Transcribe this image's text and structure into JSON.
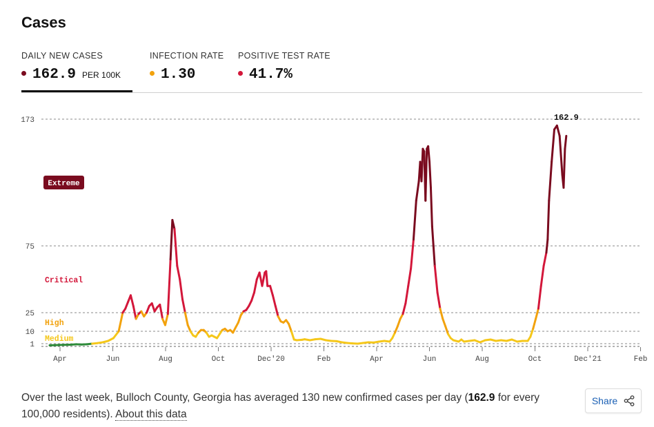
{
  "title": "Cases",
  "tabs": [
    {
      "label": "DAILY NEW CASES",
      "value": "162.9",
      "unit": "PER 100K",
      "dot_color": "#7a0b1f",
      "active": true
    },
    {
      "label": "INFECTION RATE",
      "value": "1.30",
      "unit": "",
      "dot_color": "#f2a20d",
      "active": false
    },
    {
      "label": "POSITIVE TEST RATE",
      "value": "41.7%",
      "unit": "",
      "dot_color": "#d3173a",
      "active": false
    }
  ],
  "footer": {
    "text_before": "Over the last week, Bulloch County, Georgia has averaged 130 new confirmed cases per day (",
    "bold_value": "162.9",
    "text_after": " for every 100,000 residents). ",
    "link_label": "About this data"
  },
  "share": {
    "label": "Share",
    "icon": "share-icon"
  },
  "chart_data": {
    "type": "line",
    "series_name": "Daily new cases per 100K",
    "x_ticks": [
      "Apr",
      "Jun",
      "Aug",
      "Oct",
      "Dec'20",
      "Feb",
      "Apr",
      "Jun",
      "Aug",
      "Oct",
      "Dec'21",
      "Feb"
    ],
    "y_ticks": [
      1,
      10,
      25,
      75,
      173
    ],
    "y_scale": "nonlinear (threshold-banded)",
    "latest_label": "162.9",
    "risk_bands": [
      {
        "label": "Medium",
        "from": 1,
        "to": 10,
        "color": "#f5c71a"
      },
      {
        "label": "High",
        "from": 10,
        "to": 25,
        "color": "#f2a20d"
      },
      {
        "label": "Critical",
        "from": 25,
        "to": 75,
        "color": "#d3173a"
      },
      {
        "label": "Extreme",
        "from": 75,
        "to": 173,
        "color": "#7a0b1f"
      }
    ],
    "low_color": "#2e8b3a",
    "points": [
      [
        0,
        0.2
      ],
      [
        0.2,
        0.3
      ],
      [
        0.5,
        0.4
      ],
      [
        0.8,
        0.5
      ],
      [
        1.0,
        0.7
      ],
      [
        1.2,
        0.6
      ],
      [
        1.4,
        0.7
      ],
      [
        1.6,
        1
      ],
      [
        1.8,
        1.4
      ],
      [
        2.0,
        2
      ],
      [
        2.2,
        3
      ],
      [
        2.4,
        5
      ],
      [
        2.6,
        10
      ],
      [
        2.75,
        25
      ],
      [
        2.85,
        28
      ],
      [
        2.95,
        33
      ],
      [
        3.05,
        38
      ],
      [
        3.15,
        30
      ],
      [
        3.25,
        20
      ],
      [
        3.35,
        24
      ],
      [
        3.45,
        26
      ],
      [
        3.55,
        22
      ],
      [
        3.65,
        25
      ],
      [
        3.75,
        30
      ],
      [
        3.85,
        32
      ],
      [
        3.95,
        26
      ],
      [
        4.05,
        29
      ],
      [
        4.15,
        31
      ],
      [
        4.25,
        20
      ],
      [
        4.35,
        15
      ],
      [
        4.45,
        24
      ],
      [
        4.55,
        65
      ],
      [
        4.62,
        95
      ],
      [
        4.7,
        88
      ],
      [
        4.8,
        60
      ],
      [
        4.9,
        50
      ],
      [
        5.0,
        35
      ],
      [
        5.1,
        25
      ],
      [
        5.2,
        15
      ],
      [
        5.3,
        10
      ],
      [
        5.4,
        7
      ],
      [
        5.5,
        6
      ],
      [
        5.6,
        9
      ],
      [
        5.7,
        11
      ],
      [
        5.8,
        11
      ],
      [
        5.9,
        9
      ],
      [
        6.0,
        6
      ],
      [
        6.1,
        7
      ],
      [
        6.2,
        6
      ],
      [
        6.3,
        5
      ],
      [
        6.4,
        8
      ],
      [
        6.5,
        11
      ],
      [
        6.6,
        12
      ],
      [
        6.7,
        10
      ],
      [
        6.8,
        11
      ],
      [
        6.9,
        9
      ],
      [
        7.0,
        13
      ],
      [
        7.1,
        17
      ],
      [
        7.2,
        23
      ],
      [
        7.3,
        26
      ],
      [
        7.4,
        27
      ],
      [
        7.5,
        30
      ],
      [
        7.6,
        34
      ],
      [
        7.7,
        40
      ],
      [
        7.8,
        50
      ],
      [
        7.9,
        55
      ],
      [
        8.0,
        45
      ],
      [
        8.1,
        55
      ],
      [
        8.15,
        56
      ],
      [
        8.2,
        45
      ],
      [
        8.3,
        45
      ],
      [
        8.4,
        38
      ],
      [
        8.5,
        30
      ],
      [
        8.6,
        22
      ],
      [
        8.7,
        18
      ],
      [
        8.8,
        17
      ],
      [
        8.9,
        19
      ],
      [
        9.0,
        16
      ],
      [
        9.1,
        10
      ],
      [
        9.2,
        4
      ],
      [
        9.3,
        3.5
      ],
      [
        9.5,
        3.8
      ],
      [
        9.6,
        4.2
      ],
      [
        9.8,
        3.5
      ],
      [
        10.0,
        4.2
      ],
      [
        10.2,
        4.5
      ],
      [
        10.4,
        3.5
      ],
      [
        10.6,
        3
      ],
      [
        10.8,
        2.8
      ],
      [
        11.0,
        2
      ],
      [
        11.2,
        1.5
      ],
      [
        11.4,
        1.2
      ],
      [
        11.6,
        1
      ],
      [
        11.8,
        1.5
      ],
      [
        12.0,
        2
      ],
      [
        12.2,
        1.8
      ],
      [
        12.4,
        2.5
      ],
      [
        12.6,
        3
      ],
      [
        12.8,
        2.5
      ],
      [
        12.9,
        5
      ],
      [
        13.0,
        9
      ],
      [
        13.1,
        14
      ],
      [
        13.2,
        20
      ],
      [
        13.3,
        24
      ],
      [
        13.4,
        32
      ],
      [
        13.5,
        45
      ],
      [
        13.6,
        58
      ],
      [
        13.7,
        80
      ],
      [
        13.8,
        110
      ],
      [
        13.9,
        125
      ],
      [
        13.95,
        140
      ],
      [
        14.0,
        125
      ],
      [
        14.05,
        150
      ],
      [
        14.1,
        148
      ],
      [
        14.15,
        110
      ],
      [
        14.2,
        150
      ],
      [
        14.25,
        152
      ],
      [
        14.3,
        140
      ],
      [
        14.35,
        120
      ],
      [
        14.4,
        90
      ],
      [
        14.5,
        60
      ],
      [
        14.6,
        40
      ],
      [
        14.7,
        28
      ],
      [
        14.8,
        20
      ],
      [
        14.9,
        14
      ],
      [
        15.0,
        8
      ],
      [
        15.1,
        5
      ],
      [
        15.2,
        3.5
      ],
      [
        15.4,
        2.5
      ],
      [
        15.5,
        4
      ],
      [
        15.6,
        2.5
      ],
      [
        15.8,
        3
      ],
      [
        16.0,
        3.5
      ],
      [
        16.2,
        2
      ],
      [
        16.4,
        3.5
      ],
      [
        16.6,
        4
      ],
      [
        16.8,
        3
      ],
      [
        17.0,
        3.5
      ],
      [
        17.2,
        3
      ],
      [
        17.4,
        4
      ],
      [
        17.6,
        2.5
      ],
      [
        17.8,
        3
      ],
      [
        18.0,
        3
      ],
      [
        18.1,
        6
      ],
      [
        18.2,
        12
      ],
      [
        18.3,
        20
      ],
      [
        18.4,
        28
      ],
      [
        18.5,
        45
      ],
      [
        18.6,
        60
      ],
      [
        18.7,
        70
      ],
      [
        18.75,
        80
      ],
      [
        18.8,
        110
      ],
      [
        18.9,
        140
      ],
      [
        19.0,
        165
      ],
      [
        19.1,
        168
      ],
      [
        19.2,
        160
      ],
      [
        19.3,
        130
      ],
      [
        19.35,
        120
      ],
      [
        19.4,
        150
      ],
      [
        19.45,
        160
      ]
    ]
  }
}
